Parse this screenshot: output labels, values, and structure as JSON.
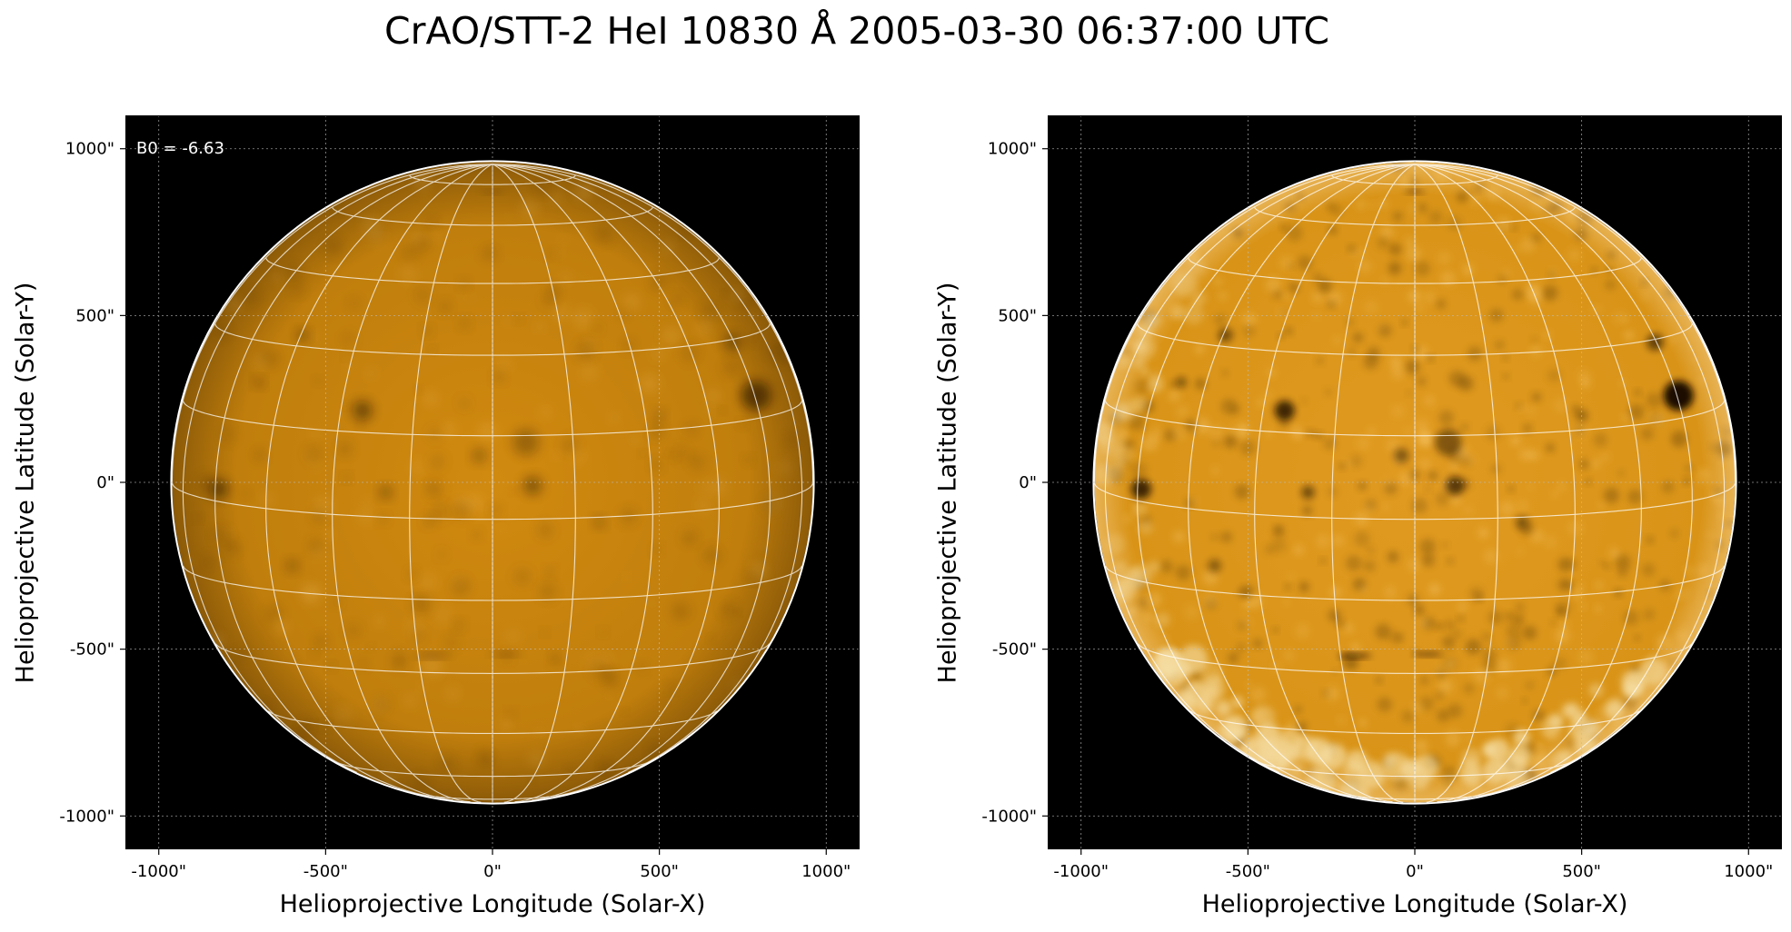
{
  "title": "CrAO/STT-2 HeI 10830 Å 2005-03-30 06:37:00 UTC",
  "panels": [
    {
      "xlabel": "Helioprojective Longitude (Solar-X)",
      "ylabel": "Helioprojective Latitude (Solar-Y)",
      "annotation": "B0 = -6.63",
      "variant": "raw"
    },
    {
      "xlabel": "Helioprojective Longitude (Solar-X)",
      "ylabel": "Helioprojective Latitude (Solar-Y)",
      "annotation": "",
      "variant": "enhanced"
    }
  ],
  "ticks": {
    "values": [
      -1000,
      -500,
      0,
      500,
      1000
    ],
    "labels": [
      "-1000\"",
      "-500\"",
      "0\"",
      "500\"",
      "1000\""
    ]
  },
  "axis_range": [
    -1100,
    1100
  ],
  "solar_radius_arcsec": 960,
  "b0_deg": -6.63,
  "colors": {
    "disk_center": "#d18a10",
    "disk_limb": "#8c5a08",
    "enhanced_center": "#e09a20",
    "enhanced_bright": "#f6dfa6",
    "grid": "#ffffff",
    "background": "#000000"
  }
}
